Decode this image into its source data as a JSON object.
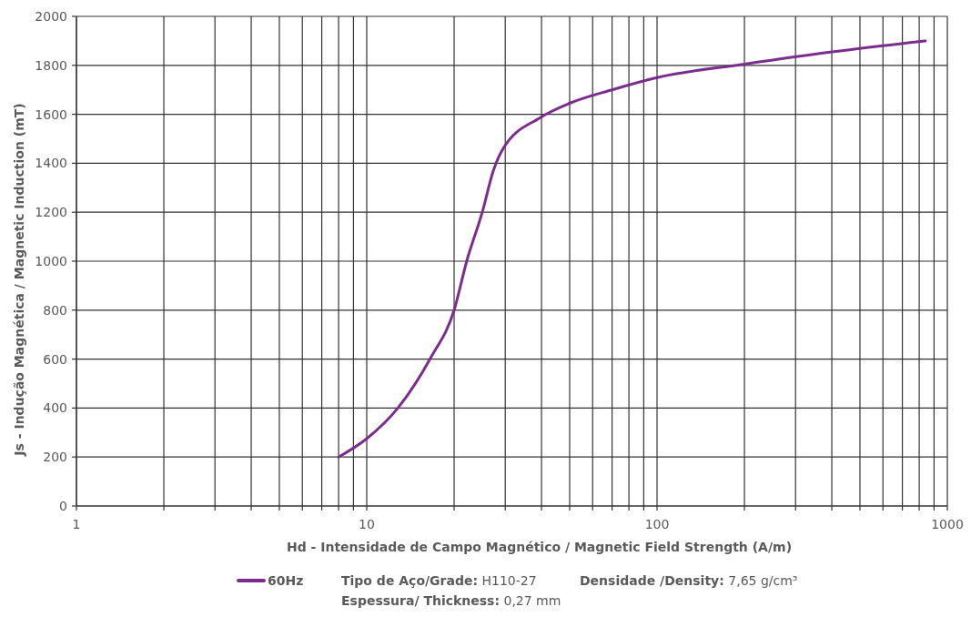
{
  "chart_data": {
    "type": "line",
    "xlabel": "Hd - Intensidade de Campo Magnético / Magnetic Field Strength (A/m)",
    "ylabel": "Js - Indução Magnética / Magnetic Induction (mT)",
    "log": "x",
    "grid": true,
    "legend": "bottom",
    "marker": "none",
    "line_style": "solid",
    "xlim": [
      1,
      1000
    ],
    "xticks": [
      1,
      {
        "value": 2,
        "label": null
      },
      {
        "value": 3,
        "label": null
      },
      {
        "value": 4,
        "label": null
      },
      {
        "value": 5,
        "label": null
      },
      {
        "value": 6,
        "label": null
      },
      {
        "value": 7,
        "label": null
      },
      {
        "value": 8,
        "label": null
      },
      {
        "value": 9,
        "label": null
      },
      10,
      {
        "value": 20,
        "label": null
      },
      {
        "value": 30,
        "label": null
      },
      {
        "value": 40,
        "label": null
      },
      {
        "value": 50,
        "label": null
      },
      {
        "value": 60,
        "label": null
      },
      {
        "value": 70,
        "label": null
      },
      {
        "value": 80,
        "label": null
      },
      {
        "value": 90,
        "label": null
      },
      100,
      {
        "value": 200,
        "label": null
      },
      {
        "value": 300,
        "label": null
      },
      {
        "value": 400,
        "label": null
      },
      {
        "value": 500,
        "label": null
      },
      {
        "value": 600,
        "label": null
      },
      {
        "value": 700,
        "label": null
      },
      {
        "value": 800,
        "label": null
      },
      {
        "value": 900,
        "label": null
      },
      1000
    ],
    "ylim": [
      0,
      2000
    ],
    "yticks": [
      0,
      200,
      400,
      600,
      800,
      1000,
      1200,
      1400,
      1600,
      1800,
      2000
    ],
    "x": [
      8,
      10,
      12.8,
      16.6,
      20,
      22.1,
      25,
      27.3,
      29.5,
      39.4,
      50,
      70,
      100,
      200,
      400,
      840
    ],
    "series": [
      {
        "name": "60Hz",
        "color": "#7b2d8e",
        "values": [
          200,
          275,
          400,
          605,
          800,
          1000,
          1200,
          1370,
          1460,
          1585,
          1645,
          1700,
          1750,
          1805,
          1855,
          1900
        ]
      }
    ],
    "annotations": [
      "Tipo de Aço/Grade: H110-27",
      "Espessura/ Thickness: 0,27 mm",
      "Densidade /Density: 7,65 g/cm³"
    ]
  }
}
